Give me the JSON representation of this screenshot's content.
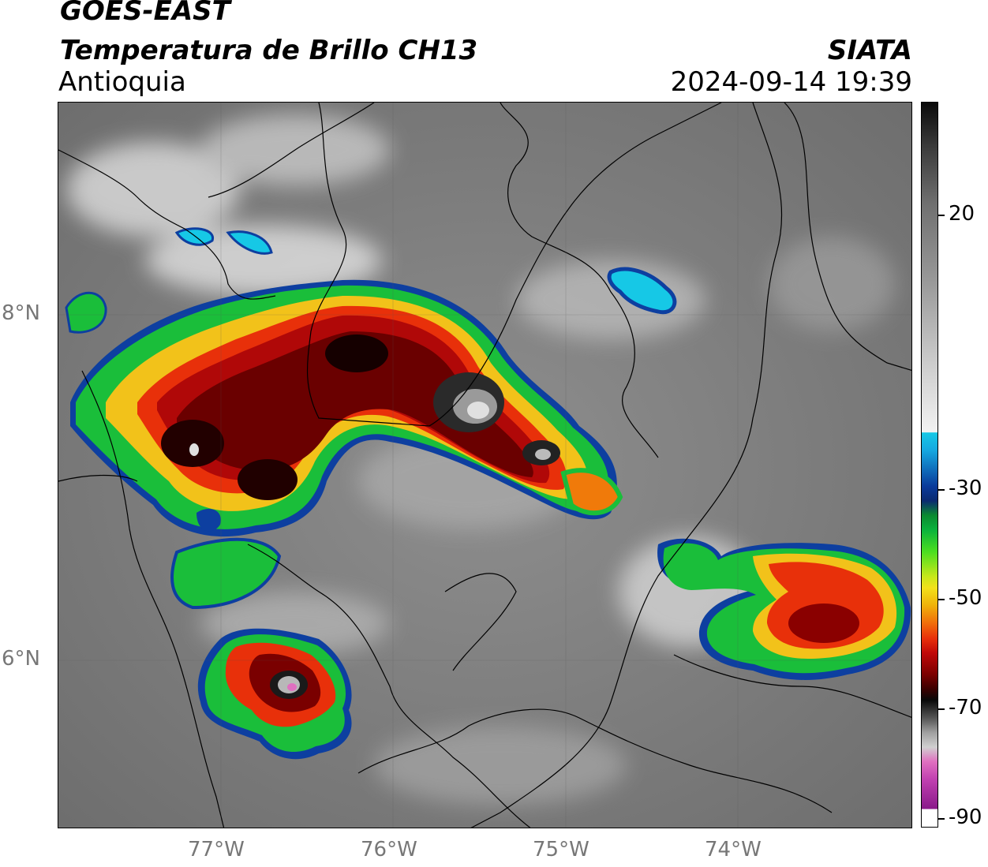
{
  "header": {
    "satellite": "GOES-EAST",
    "product": "Temperatura de Brillo CH13",
    "region": "Antioquia",
    "source": "SIATA",
    "datetime": "2024-09-14 19:39"
  },
  "axes": {
    "lat_labels": [
      "8°N",
      "6°N"
    ],
    "lon_labels": [
      "77°W",
      "76°W",
      "75°W",
      "74°W"
    ]
  },
  "colorbar": {
    "labels": [
      "20",
      "-30",
      "-50",
      "-70",
      "-90"
    ],
    "colors": {
      "warm_gray_top": "#1a1a1a",
      "mid_gray": "#9a9a9a",
      "white": "#f2f2f2",
      "cyan": "#16c8e6",
      "blue": "#0a3a9a",
      "green": "#0ab23c",
      "yellow": "#f2e21a",
      "orange": "#f08a0a",
      "red": "#d40a0a",
      "dark_red": "#5a0000",
      "black": "#080808",
      "pink": "#e070c0",
      "purple": "#8a1a8a"
    }
  }
}
